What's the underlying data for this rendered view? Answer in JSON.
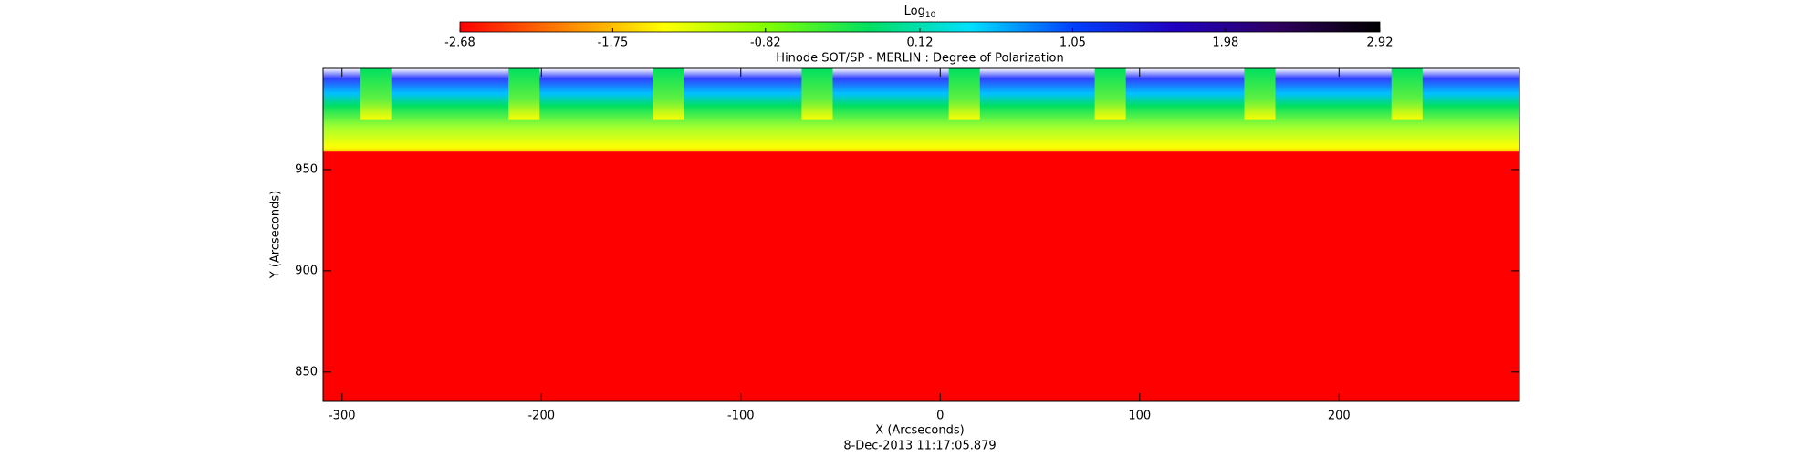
{
  "chart_data": {
    "type": "heatmap",
    "title": "Hinode SOT/SP - MERLIN : Degree of Polarization",
    "x_label": "X (Arcseconds)",
    "y_label": "Y (Arcseconds)",
    "footer": "8-Dec-2013 11:17:05.879",
    "colorbar_label": "Log",
    "colorbar_label_sub": "10",
    "xlim": [
      -309.5,
      290.5
    ],
    "xticks": [
      -300,
      -200,
      -100,
      0,
      100,
      200
    ],
    "ylim": [
      835.5,
      1000
    ],
    "yticks": [
      850,
      900,
      950
    ],
    "clim": [
      -2.68,
      2.92
    ],
    "cticks": [
      -2.68,
      -1.75,
      -0.82,
      0.12,
      1.05,
      1.98,
      2.92
    ],
    "colormap": [
      "#ff0000",
      "#ff8000",
      "#ffff00",
      "#80ff00",
      "#00e060",
      "#00e0ff",
      "#0040ff",
      "#2000c0",
      "#300060",
      "#000000"
    ]
  }
}
